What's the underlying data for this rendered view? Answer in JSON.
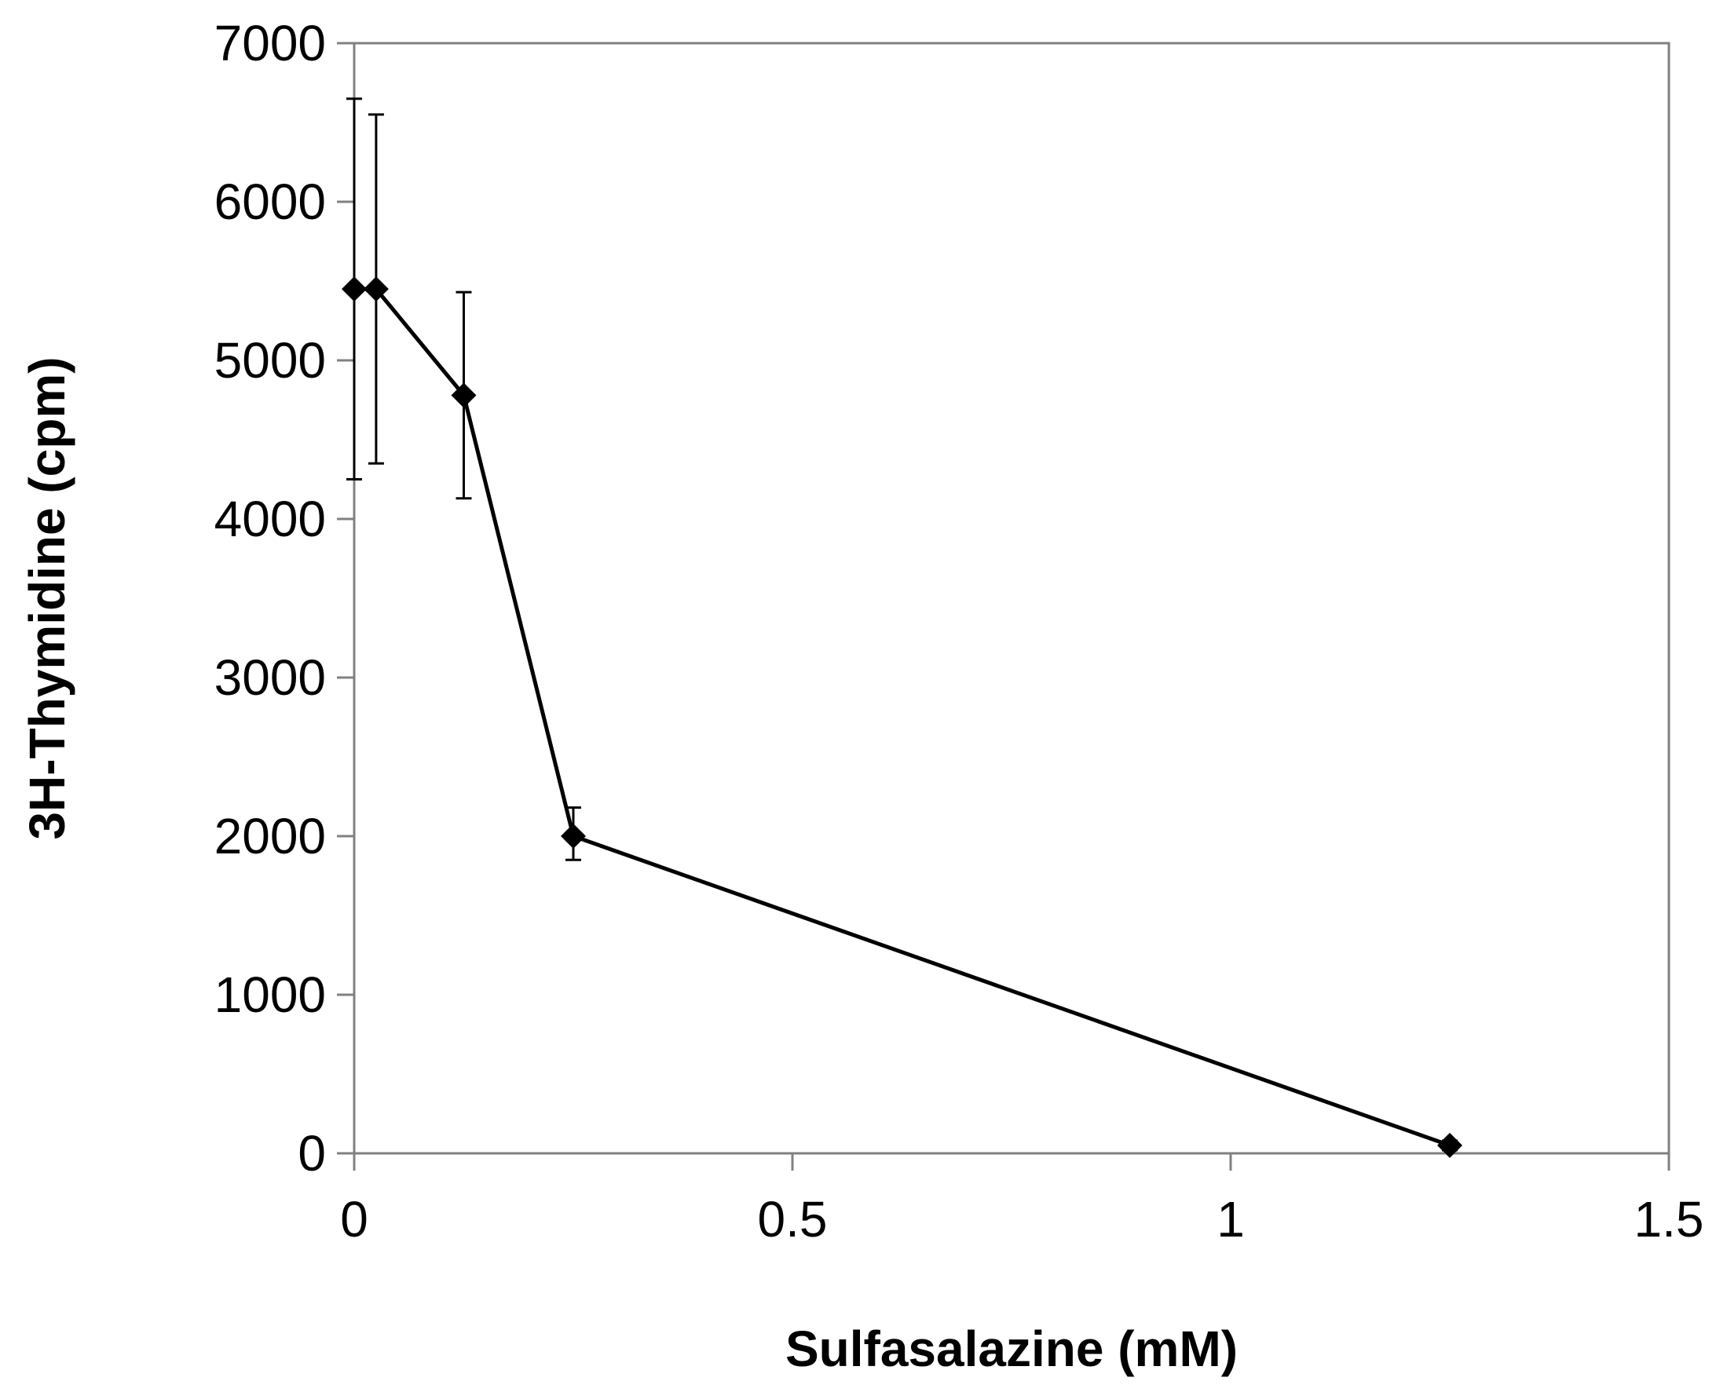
{
  "chart_data": {
    "type": "line",
    "xlabel": "Sulfasalazine  (mM)",
    "ylabel": "3H-Thymidine  (cpm)",
    "xlim": [
      0,
      1.5
    ],
    "ylim": [
      0,
      7000
    ],
    "x_ticks": [
      0,
      0.5,
      1,
      1.5
    ],
    "x_tick_labels": [
      "0",
      "0.5",
      "1",
      "1.5"
    ],
    "y_ticks": [
      0,
      1000,
      2000,
      3000,
      4000,
      5000,
      6000,
      7000
    ],
    "y_tick_labels": [
      "0",
      "1000",
      "2000",
      "3000",
      "4000",
      "5000",
      "6000",
      "7000"
    ],
    "grid": false,
    "legend": "none",
    "marker": "diamond",
    "line_color": "#000000",
    "series": [
      {
        "x": [
          0,
          0.025,
          0.125,
          0.25,
          1.25
        ],
        "y": [
          5450,
          5450,
          4780,
          2000,
          50
        ],
        "error_low": [
          4250,
          4350,
          4130,
          1850,
          20
        ],
        "error_high": [
          6650,
          6550,
          5430,
          2180,
          80
        ]
      }
    ]
  }
}
